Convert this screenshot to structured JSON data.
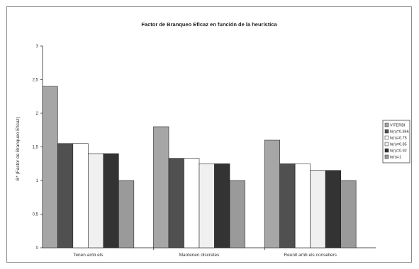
{
  "chart_data": {
    "type": "bar",
    "title": "Factor de Branqueo Eficaz en función de la heurística",
    "xlabel": "",
    "ylabel": "B* (Factor de Branqueo Eficaz)",
    "ylim": [
      0,
      3
    ],
    "yticks": [
      "0",
      "0,5",
      "1",
      "1,5",
      "2",
      "2,5",
      "3"
    ],
    "ytick_values": [
      0,
      0.5,
      1,
      1.5,
      2,
      2.5,
      3
    ],
    "grid": false,
    "legend_position": "right",
    "categories": [
      "Tenen amb els",
      "Mantenen discretes",
      "Reunit amb els consellers"
    ],
    "series": [
      {
        "name": "VITERBI",
        "color": "#a6a6a6",
        "values": [
          2.4,
          1.8,
          1.6
        ]
      },
      {
        "name": "h(n)=0.866",
        "color": "#505050",
        "values": [
          1.55,
          1.33,
          1.25
        ]
      },
      {
        "name": "h(n)=0.75",
        "color": "#ffffff",
        "values": [
          1.55,
          1.33,
          1.25
        ]
      },
      {
        "name": "h(n)=0.85",
        "color": "#f0f0f0",
        "values": [
          1.4,
          1.25,
          1.15
        ]
      },
      {
        "name": "h(n)=0.92",
        "color": "#333333",
        "values": [
          1.4,
          1.25,
          1.15
        ]
      },
      {
        "name": "h(n)=1",
        "color": "#9a9a9a",
        "values": [
          1.0,
          1.0,
          1.0
        ]
      }
    ]
  }
}
